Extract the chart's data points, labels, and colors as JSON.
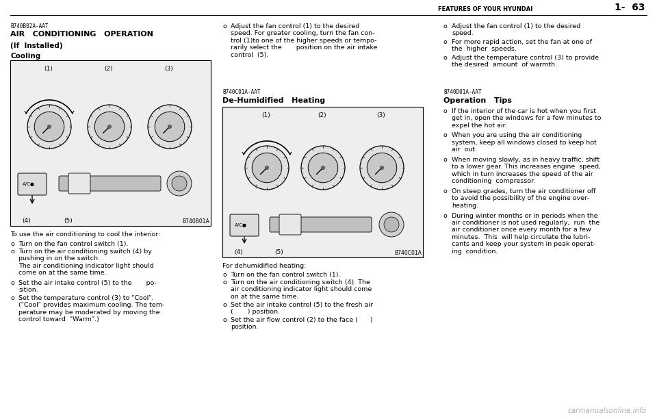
{
  "bg_color": "#ffffff",
  "text_color": "#000000",
  "page_width": 9.6,
  "page_height": 6.12,
  "watermark": "carmanualsonline.info",
  "header_text": "FEATURES OF YOUR HYUNDAI",
  "header_page": "1-  63",
  "section1_ref": "B740B02A-AAT",
  "section1_title": "AIR   CONDITIONING   OPERATION",
  "section1_sub": "(If  Installed)",
  "section1_subsub": "Cooling",
  "section1_img_ref": "B740B01A",
  "section2_ref": "B740C01A-AAT",
  "section2_title": "De-Humidified   Heating",
  "section2_img_ref": "B740C01A",
  "section3_ref": "B740D01A-AAT",
  "section3_title": "Operation   Tips"
}
